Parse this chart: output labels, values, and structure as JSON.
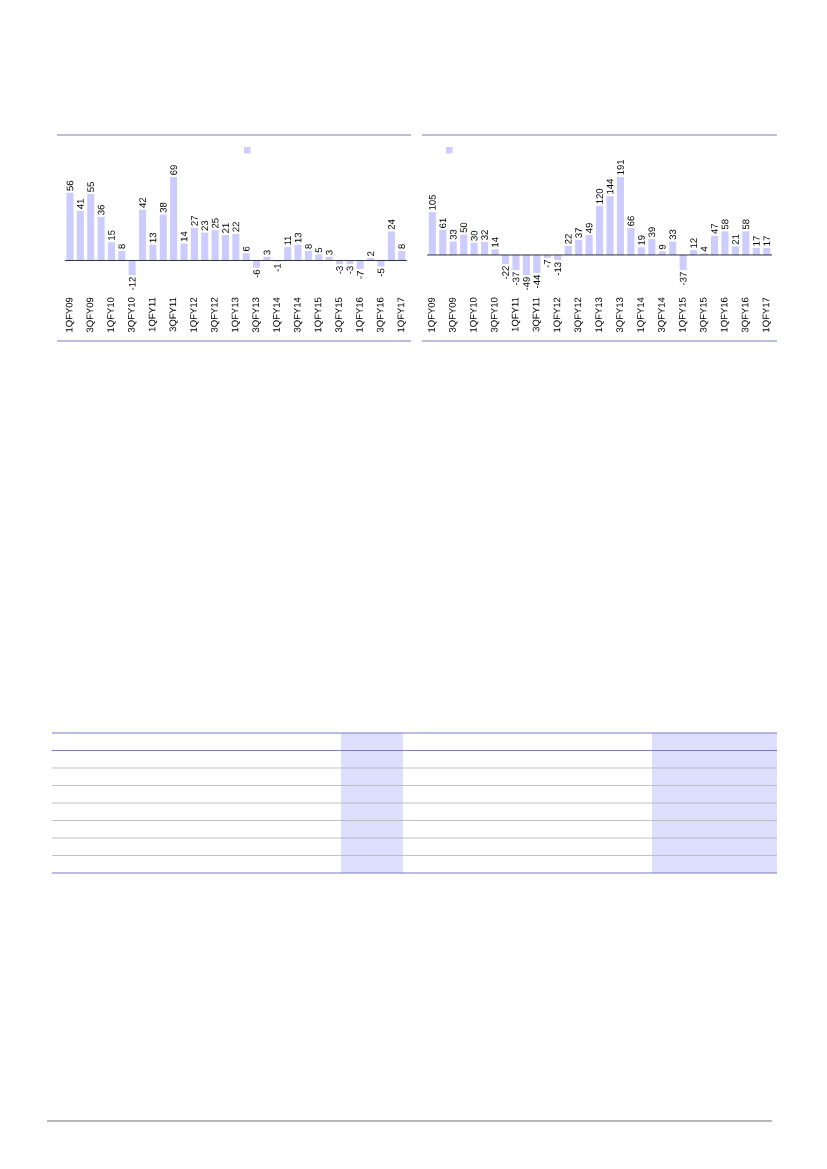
{
  "chart_data": [
    {
      "type": "bar",
      "categories": [
        "1QFY09",
        null,
        "3QFY09",
        null,
        "1QFY10",
        null,
        "3QFY10",
        null,
        "1QFY11",
        null,
        "3QFY11",
        null,
        "1QFY12",
        null,
        "3QFY12",
        null,
        "1QFY13",
        null,
        "3QFY13",
        null,
        "1QFY14",
        null,
        "3QFY14",
        null,
        "1QFY15",
        null,
        "3QFY15",
        null,
        "1QFY16",
        null,
        "3QFY16",
        null,
        "1QFY17"
      ],
      "values": [
        56,
        41,
        55,
        36,
        15,
        8,
        -12,
        42,
        13,
        38,
        69,
        14,
        27,
        23,
        25,
        21,
        22,
        6,
        -6,
        3,
        -1,
        11,
        13,
        8,
        5,
        3,
        -3,
        -3,
        -7,
        2,
        -5,
        24,
        8
      ],
      "color": "#ccccff",
      "data_labels": true
    },
    {
      "type": "bar",
      "categories": [
        "1QFY09",
        null,
        "3QFY09",
        null,
        "1QFY10",
        null,
        "3QFY10",
        null,
        "1QFY11",
        null,
        "3QFY11",
        null,
        "1QFY12",
        null,
        "3QFY12",
        null,
        "1QFY13",
        null,
        "3QFY13",
        null,
        "1QFY14",
        null,
        "3QFY14",
        null,
        "1QFY15",
        null,
        "3QFY15",
        null,
        "1QFY16",
        null,
        "3QFY16",
        null,
        "1QFY17"
      ],
      "values": [
        105,
        61,
        33,
        50,
        30,
        32,
        14,
        -22,
        -37,
        -49,
        -44,
        -7,
        -13,
        22,
        37,
        49,
        120,
        144,
        191,
        66,
        19,
        39,
        9,
        33,
        -37,
        12,
        4,
        47,
        58,
        21,
        58,
        17,
        17
      ],
      "color": "#ccccff",
      "data_labels": true
    }
  ]
}
